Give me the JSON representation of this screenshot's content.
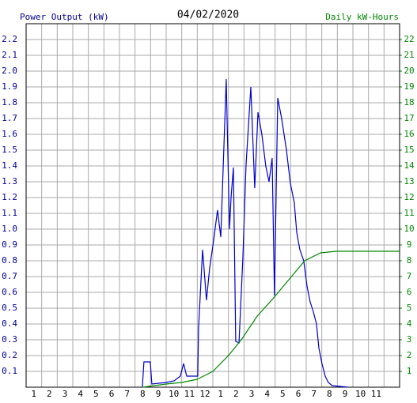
{
  "chart_data": {
    "type": "line",
    "title": "04/02/2020",
    "ylabel": "Power Output (kW)",
    "y2label": "Daily kW-Hours",
    "xlim": [
      0,
      24
    ],
    "xticks": [
      1,
      2,
      3,
      4,
      5,
      6,
      7,
      8,
      9,
      10,
      11,
      12,
      {
        "value": 13,
        "label": "1"
      },
      {
        "value": 14,
        "label": "2"
      },
      {
        "value": 15,
        "label": "3"
      },
      {
        "value": 16,
        "label": "4"
      },
      {
        "value": 17,
        "label": "5"
      },
      {
        "value": 18,
        "label": "6"
      },
      {
        "value": 19,
        "label": "7"
      },
      {
        "value": 20,
        "label": "8"
      },
      {
        "value": 21,
        "label": "9"
      },
      {
        "value": 22,
        "label": "10"
      },
      {
        "value": 23,
        "label": "11"
      }
    ],
    "ylim": [
      0,
      2.3
    ],
    "yticks": [
      0.1,
      0.2,
      0.3,
      0.4,
      0.5,
      0.6,
      0.7,
      0.8,
      0.9,
      {
        "value": 1.0,
        "label": "1.0"
      },
      1.1,
      1.2,
      1.3,
      1.4,
      1.5,
      1.6,
      1.7,
      1.8,
      1.9,
      {
        "value": 2.0,
        "label": "2.0"
      },
      2.1,
      2.2
    ],
    "y2lim": [
      0,
      23
    ],
    "y2ticks": [
      1,
      2,
      3,
      4,
      5,
      6,
      7,
      8,
      9,
      10,
      11,
      12,
      13,
      14,
      15,
      16,
      17,
      18,
      19,
      20,
      21,
      22
    ],
    "grid": true,
    "series": [
      {
        "name": "Power Output (kW)",
        "color": "#0000cc",
        "x": [
          7.47,
          7.57,
          7.98,
          8.08,
          9.0,
          9.51,
          9.91,
          10.12,
          10.32,
          11.03,
          11.08,
          11.34,
          11.59,
          11.79,
          12.05,
          12.3,
          12.51,
          12.86,
          13.07,
          13.17,
          13.32,
          13.47,
          13.68,
          13.93,
          14.13,
          14.44,
          14.69,
          14.9,
          15.15,
          15.4,
          15.61,
          15.81,
          15.96,
          16.17,
          16.42,
          16.73,
          16.98,
          17.23,
          17.39,
          17.59,
          17.84,
          18.05,
          18.25,
          18.45,
          18.66,
          18.81,
          19.01,
          19.22,
          19.42,
          19.67,
          20.69
        ],
        "values": [
          0,
          0.16,
          0.16,
          0.02,
          0.03,
          0.04,
          0.07,
          0.15,
          0.07,
          0.07,
          0.37,
          0.87,
          0.55,
          0.75,
          0.93,
          1.12,
          0.95,
          1.95,
          1.0,
          1.2,
          1.39,
          0.29,
          0.28,
          0.82,
          1.4,
          1.9,
          1.26,
          1.74,
          1.6,
          1.4,
          1.3,
          1.45,
          0.58,
          1.83,
          1.7,
          1.5,
          1.29,
          1.17,
          0.98,
          0.87,
          0.8,
          0.64,
          0.54,
          0.48,
          0.4,
          0.25,
          0.15,
          0.07,
          0.03,
          0.01,
          0
        ]
      },
      {
        "name": "Daily kW-Hours",
        "color": "#008800",
        "axis": "y2",
        "x": [
          7.47,
          9.0,
          10.0,
          11.0,
          12.0,
          13.0,
          13.83,
          14.85,
          15.86,
          16.88,
          17.9,
          18.92,
          19.93,
          24
        ],
        "values": [
          0,
          0.2,
          0.3,
          0.5,
          1.0,
          2.0,
          3.0,
          4.5,
          5.6,
          6.8,
          8.0,
          8.5,
          8.6,
          8.6
        ]
      }
    ]
  }
}
